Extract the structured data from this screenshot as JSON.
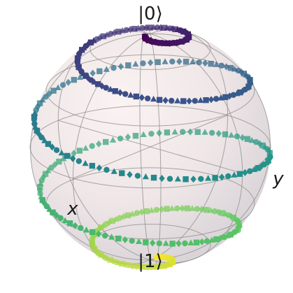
{
  "labels": {
    "north": "|0⟩",
    "south": "|1⟩",
    "x_axis": "x",
    "y_axis": "y"
  },
  "colors": {
    "sphere_light": "#f7eeee",
    "sphere_mid": "#e9e1e3",
    "sphere_dark": "#d2cdd2",
    "wire": "#8c8c8c",
    "colormap": [
      "#440154",
      "#3b528b",
      "#21918c",
      "#5ec962",
      "#fde725"
    ]
  },
  "trajectory": {
    "description_markers": [
      "triangle",
      "square",
      "diamond",
      "circle"
    ],
    "turns": 4.5,
    "theta_start_deg": 4,
    "theta_end_deg": 176
  }
}
